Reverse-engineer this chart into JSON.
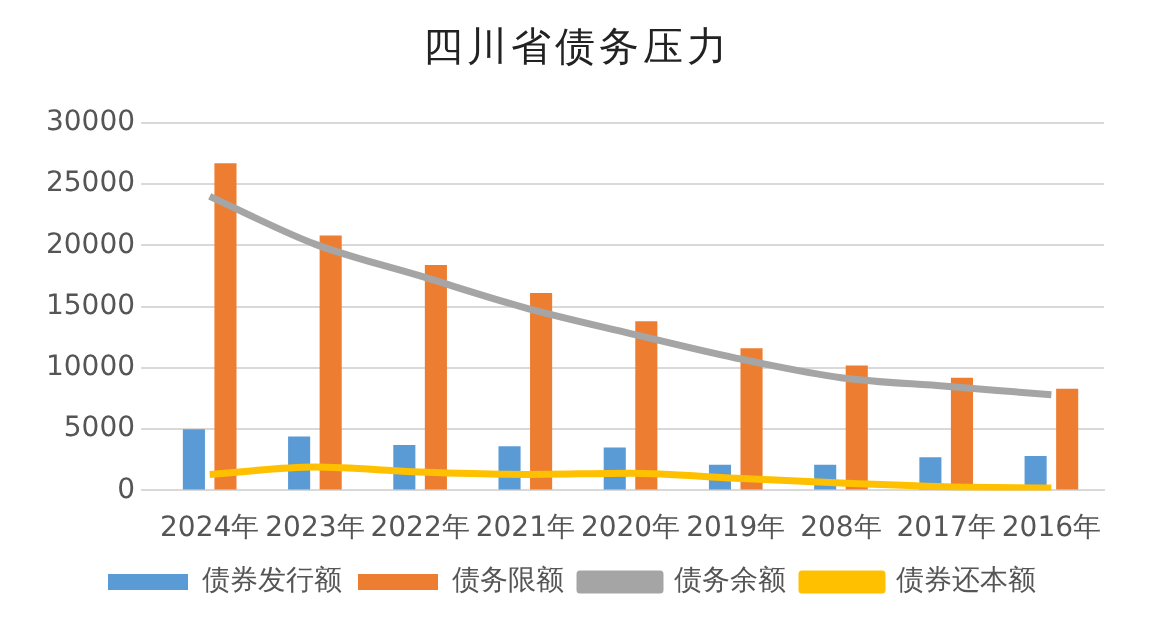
{
  "chart_data": {
    "type": "bar",
    "title": "四川省债务压力",
    "categories": [
      "2024年",
      "2023年",
      "2022年",
      "2021年",
      "2020年",
      "2019年",
      "208年",
      "2017年",
      "2016年"
    ],
    "series": [
      {
        "name": "债券发行额",
        "color": "#5b9bd5",
        "values": [
          5000,
          4400,
          3700,
          3600,
          3500,
          2100,
          2100,
          2700,
          2800
        ]
      },
      {
        "name": "债务限额",
        "color": "#ed7d31",
        "values": [
          26700,
          20800,
          18400,
          16100,
          13800,
          11600,
          10200,
          9200,
          8300
        ]
      },
      {
        "name": "债务余额",
        "type": "line",
        "color": "#a5a5a5",
        "values": [
          24000,
          20100,
          17500,
          14900,
          12800,
          10800,
          9200,
          8500,
          7800
        ]
      },
      {
        "name": "债券还本额",
        "type": "line",
        "color": "#ffc000",
        "values": [
          1300,
          1900,
          1500,
          1300,
          1400,
          1000,
          600,
          300,
          200
        ]
      }
    ],
    "ylim": [
      0,
      30000
    ],
    "yticks": [
      0,
      5000,
      10000,
      15000,
      20000,
      25000,
      30000
    ],
    "grid": "y",
    "legend": "bottom",
    "marker": "none"
  }
}
